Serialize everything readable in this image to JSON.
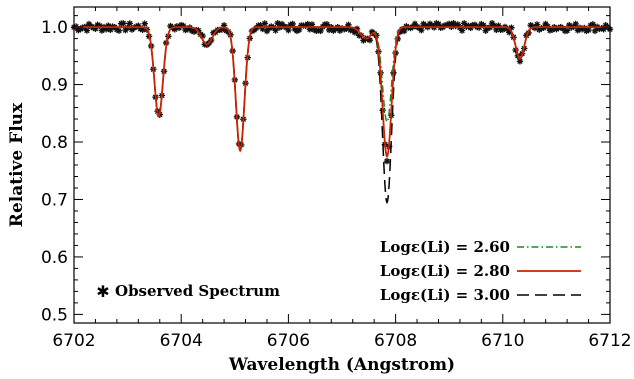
{
  "chart_data": {
    "type": "line",
    "title": "",
    "xlabel": "Wavelength (Angstrom)",
    "ylabel": "Relative Flux",
    "xlim": [
      6702,
      6712
    ],
    "ylim": [
      0.485,
      1.035
    ],
    "xticks": [
      6702,
      6704,
      6706,
      6708,
      6710,
      6712
    ],
    "xtick_labels": [
      "6702",
      "6704",
      "6706",
      "6708",
      "6710",
      "6712"
    ],
    "yticks": [
      0.5,
      0.6,
      0.7,
      0.8,
      0.9,
      1.0
    ],
    "ytick_labels": [
      "0.5",
      "0.6",
      "0.7",
      "0.8",
      "0.9",
      "1.0"
    ],
    "grid": false,
    "continuum": 1.0,
    "lines": [
      {
        "center": 6703.58,
        "depth": 0.155,
        "width": 0.08
      },
      {
        "center": 6704.48,
        "depth": 0.03,
        "width": 0.1
      },
      {
        "center": 6705.1,
        "depth": 0.215,
        "width": 0.08
      },
      {
        "center": 6707.45,
        "depth": 0.02,
        "width": 0.1
      },
      {
        "center": 6710.32,
        "depth": 0.055,
        "width": 0.08
      }
    ],
    "series": [
      {
        "name": "Logε(Li) = 2.60",
        "color": "#1f8b1f",
        "dash": "dashdot",
        "li_depth": 0.165
      },
      {
        "name": "Logε(Li) = 2.80",
        "color": "#cc2200",
        "dash": "solid",
        "li_depth": 0.225
      },
      {
        "name": "Logε(Li) = 3.00",
        "color": "#000000",
        "dash": "longdash",
        "li_depth": 0.305
      }
    ],
    "li_line": {
      "center": 6707.84,
      "width": 0.085
    },
    "observed": {
      "name": "Observed Spectrum",
      "marker": "asterisk",
      "x_start": 6702.0,
      "x_end": 6712.0,
      "x_step": 0.04,
      "li_depth": 0.23,
      "noise": 0.007
    },
    "legend_position": "bottom-right"
  }
}
